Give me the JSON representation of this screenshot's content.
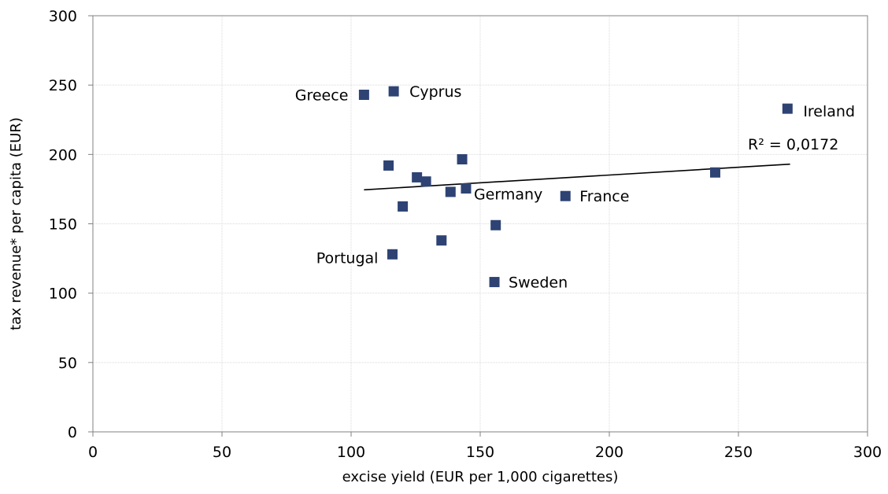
{
  "chart_data": {
    "type": "scatter",
    "title": "",
    "xlabel": "excise yield (EUR per 1,000 cigarettes)",
    "ylabel": "tax revenue* per capita (EUR)",
    "xlim": [
      0,
      300
    ],
    "ylim": [
      0,
      300
    ],
    "x_ticks": [
      "0",
      "50",
      "100",
      "150",
      "200",
      "250",
      "300"
    ],
    "y_ticks": [
      "0",
      "50",
      "100",
      "150",
      "200",
      "250",
      "300"
    ],
    "grid": true,
    "legend": false,
    "marker_color": "#2e4374",
    "points": [
      {
        "x": 105,
        "y": 243,
        "label": "Greece"
      },
      {
        "x": 116.5,
        "y": 245.5,
        "label": "Cyprus"
      },
      {
        "x": 269,
        "y": 233,
        "label": "Ireland"
      },
      {
        "x": 114.5,
        "y": 192,
        "label": ""
      },
      {
        "x": 143,
        "y": 196.5,
        "label": ""
      },
      {
        "x": 125.5,
        "y": 183.5,
        "label": ""
      },
      {
        "x": 129,
        "y": 180.5,
        "label": ""
      },
      {
        "x": 138.5,
        "y": 173,
        "label": ""
      },
      {
        "x": 144.5,
        "y": 175.5,
        "label": "Germany"
      },
      {
        "x": 120,
        "y": 162.5,
        "label": ""
      },
      {
        "x": 183,
        "y": 170,
        "label": "France"
      },
      {
        "x": 241,
        "y": 187,
        "label": ""
      },
      {
        "x": 156,
        "y": 149,
        "label": ""
      },
      {
        "x": 135,
        "y": 138,
        "label": ""
      },
      {
        "x": 116,
        "y": 128,
        "label": "Portugal"
      },
      {
        "x": 155.5,
        "y": 108,
        "label": "Sweden"
      }
    ],
    "trendline": {
      "type": "linear",
      "x_range": [
        105,
        270
      ],
      "y_range": [
        174.5,
        193
      ],
      "r2_label": "R² = 0,0172"
    }
  }
}
